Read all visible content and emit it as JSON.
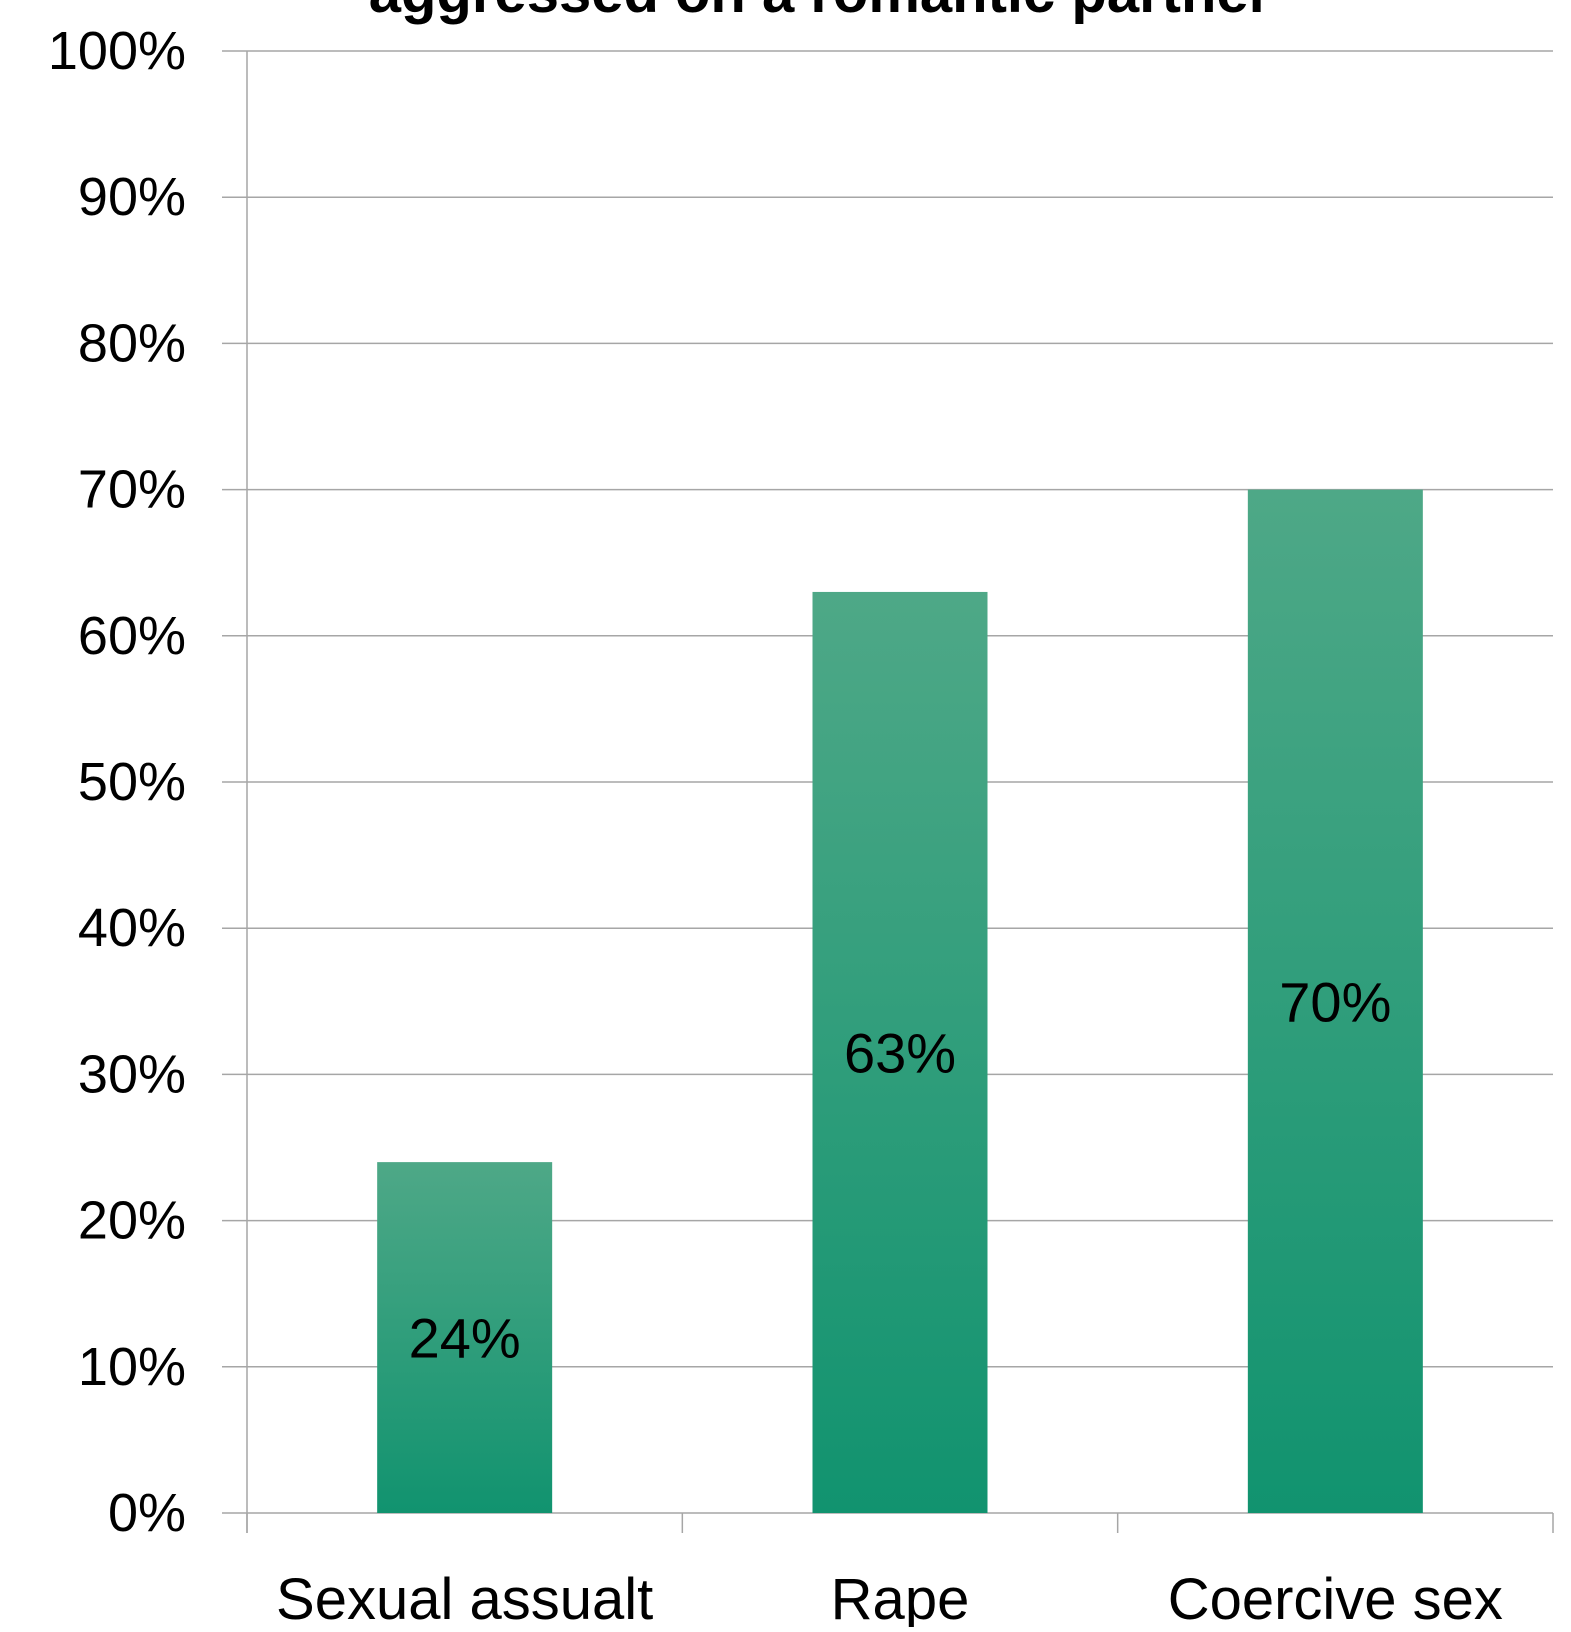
{
  "chart_data": {
    "type": "bar",
    "title": "aggressed on a romantic partner",
    "xlabel": "",
    "ylabel": "",
    "categories": [
      "Sexual assualt",
      "Rape",
      "Coercive sex"
    ],
    "values": [
      24,
      63,
      70
    ],
    "data_labels": [
      "24%",
      "63%",
      "70%"
    ],
    "ylim": [
      0,
      100
    ],
    "yticks": [
      "0%",
      "10%",
      "20%",
      "30%",
      "40%",
      "50%",
      "60%",
      "70%",
      "80%",
      "90%",
      "100%"
    ],
    "grid": true,
    "legend": "none",
    "colors": {
      "bar_top": "#4ea887",
      "bar_bottom": "#11936f",
      "grid": "#a6a6a6",
      "text": "#000000"
    }
  }
}
